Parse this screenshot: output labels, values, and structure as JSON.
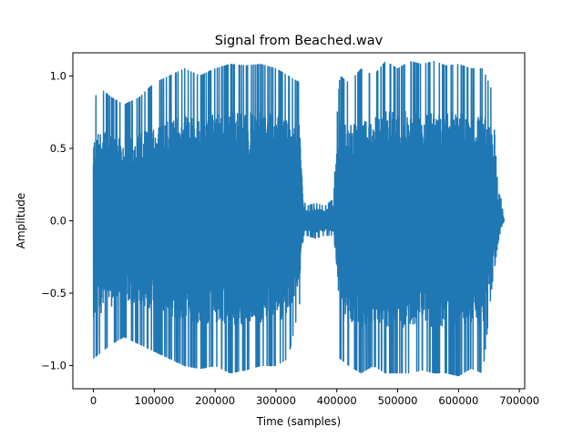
{
  "chart_data": {
    "type": "line",
    "title": "Signal from Beached.wav",
    "xlabel": "Time (samples)",
    "ylabel": "Amplitude",
    "xlim": [
      -33750,
      708750
    ],
    "ylim": [
      -1.16,
      1.16
    ],
    "x_ticks": [
      {
        "value": 0,
        "label": "0"
      },
      {
        "value": 100000,
        "label": "100000"
      },
      {
        "value": 200000,
        "label": "200000"
      },
      {
        "value": 300000,
        "label": "300000"
      },
      {
        "value": 400000,
        "label": "400000"
      },
      {
        "value": 500000,
        "label": "500000"
      },
      {
        "value": 600000,
        "label": "600000"
      },
      {
        "value": 700000,
        "label": "700000"
      }
    ],
    "y_ticks": [
      {
        "value": -1.0,
        "label": "−1.0"
      },
      {
        "value": -0.5,
        "label": "−0.5"
      },
      {
        "value": 0.0,
        "label": "0.0"
      },
      {
        "value": 0.5,
        "label": "0.5"
      },
      {
        "value": 1.0,
        "label": "1.0"
      }
    ],
    "grid": false,
    "legend": "none",
    "series": [
      {
        "color": "#1f77b4",
        "envelope": {
          "x": [
            0,
            15000,
            30000,
            50000,
            75000,
            100000,
            125000,
            150000,
            175000,
            200000,
            225000,
            250000,
            275000,
            300000,
            320000,
            340000,
            345000,
            350000,
            365000,
            380000,
            395000,
            400000,
            405000,
            420000,
            440000,
            460000,
            480000,
            500000,
            520000,
            540000,
            560000,
            580000,
            600000,
            620000,
            640000,
            655000,
            665000,
            670000,
            675000
          ],
          "max": [
            0.85,
            0.9,
            0.85,
            0.8,
            0.85,
            0.95,
            1.0,
            1.05,
            1.0,
            1.05,
            1.08,
            1.07,
            1.08,
            1.05,
            1.0,
            0.95,
            0.15,
            0.1,
            0.12,
            0.1,
            0.15,
            0.7,
            1.0,
            0.95,
            1.05,
            1.0,
            1.1,
            1.05,
            1.1,
            1.08,
            1.1,
            1.07,
            1.08,
            1.05,
            1.05,
            0.9,
            0.2,
            0.15,
            0.0
          ],
          "min": [
            -0.95,
            -0.9,
            -0.85,
            -0.8,
            -0.85,
            -0.9,
            -0.95,
            -1.0,
            -1.02,
            -1.0,
            -1.05,
            -1.03,
            -1.0,
            -1.0,
            -0.95,
            -0.55,
            -0.1,
            -0.1,
            -0.12,
            -0.1,
            -0.1,
            -0.55,
            -0.95,
            -1.0,
            -1.05,
            -1.0,
            -1.05,
            -1.05,
            -1.05,
            -1.03,
            -1.05,
            -1.05,
            -1.07,
            -1.02,
            -1.05,
            -0.45,
            -0.15,
            -0.05,
            0.0
          ]
        }
      }
    ]
  }
}
